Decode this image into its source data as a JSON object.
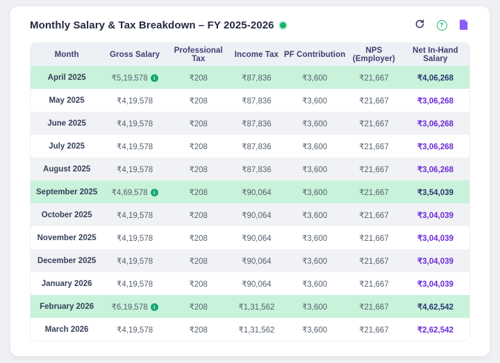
{
  "card": {
    "title": "Monthly Salary & Tax Breakdown – FY 2025-2026",
    "status_dot": "live-indicator"
  },
  "toolbar": {
    "refresh_icon": "refresh",
    "help_icon": "?",
    "document_icon": "document"
  },
  "colors": {
    "accent_green": "#17b26a",
    "highlight_row": "#c8f3da",
    "net_purple": "#6d28d9",
    "net_navy_on_highlight": "#2b3674",
    "header_bg": "#edf0f4",
    "header_text": "#3b3e70",
    "file_icon_purple": "#8b5cf6"
  },
  "table": {
    "columns": [
      "Month",
      "Gross Salary",
      "Professional Tax",
      "Income Tax",
      "PF Contribution",
      "NPS (Employer)",
      "Net In-Hand Salary"
    ],
    "rows": [
      {
        "month": "April 2025",
        "gross": "₹5,19,578",
        "gross_info_icon": true,
        "professional_tax": "₹208",
        "income_tax": "₹87,836",
        "pf": "₹3,600",
        "nps": "₹21,667",
        "net": "₹4,06,268",
        "highlighted": true
      },
      {
        "month": "May 2025",
        "gross": "₹4,19,578",
        "gross_info_icon": false,
        "professional_tax": "₹208",
        "income_tax": "₹87,836",
        "pf": "₹3,600",
        "nps": "₹21,667",
        "net": "₹3,06,268",
        "highlighted": false
      },
      {
        "month": "June 2025",
        "gross": "₹4,19,578",
        "gross_info_icon": false,
        "professional_tax": "₹208",
        "income_tax": "₹87,836",
        "pf": "₹3,600",
        "nps": "₹21,667",
        "net": "₹3,06,268",
        "highlighted": false
      },
      {
        "month": "July 2025",
        "gross": "₹4,19,578",
        "gross_info_icon": false,
        "professional_tax": "₹208",
        "income_tax": "₹87,836",
        "pf": "₹3,600",
        "nps": "₹21,667",
        "net": "₹3,06,268",
        "highlighted": false
      },
      {
        "month": "August 2025",
        "gross": "₹4,19,578",
        "gross_info_icon": false,
        "professional_tax": "₹208",
        "income_tax": "₹87,836",
        "pf": "₹3,600",
        "nps": "₹21,667",
        "net": "₹3,06,268",
        "highlighted": false
      },
      {
        "month": "September 2025",
        "gross": "₹4,69,578",
        "gross_info_icon": true,
        "professional_tax": "₹208",
        "income_tax": "₹90,064",
        "pf": "₹3,600",
        "nps": "₹21,667",
        "net": "₹3,54,039",
        "highlighted": true
      },
      {
        "month": "October 2025",
        "gross": "₹4,19,578",
        "gross_info_icon": false,
        "professional_tax": "₹208",
        "income_tax": "₹90,064",
        "pf": "₹3,600",
        "nps": "₹21,667",
        "net": "₹3,04,039",
        "highlighted": false
      },
      {
        "month": "November 2025",
        "gross": "₹4,19,578",
        "gross_info_icon": false,
        "professional_tax": "₹208",
        "income_tax": "₹90,064",
        "pf": "₹3,600",
        "nps": "₹21,667",
        "net": "₹3,04,039",
        "highlighted": false
      },
      {
        "month": "December 2025",
        "gross": "₹4,19,578",
        "gross_info_icon": false,
        "professional_tax": "₹208",
        "income_tax": "₹90,064",
        "pf": "₹3,600",
        "nps": "₹21,667",
        "net": "₹3,04,039",
        "highlighted": false
      },
      {
        "month": "January 2026",
        "gross": "₹4,19,578",
        "gross_info_icon": false,
        "professional_tax": "₹208",
        "income_tax": "₹90,064",
        "pf": "₹3,600",
        "nps": "₹21,667",
        "net": "₹3,04,039",
        "highlighted": false
      },
      {
        "month": "February 2026",
        "gross": "₹6,19,578",
        "gross_info_icon": true,
        "professional_tax": "₹208",
        "income_tax": "₹1,31,562",
        "pf": "₹3,600",
        "nps": "₹21,667",
        "net": "₹4,62,542",
        "highlighted": true
      },
      {
        "month": "March 2026",
        "gross": "₹4,19,578",
        "gross_info_icon": false,
        "professional_tax": "₹208",
        "income_tax": "₹1,31,562",
        "pf": "₹3,600",
        "nps": "₹21,667",
        "net": "₹2,62,542",
        "highlighted": false
      }
    ]
  }
}
